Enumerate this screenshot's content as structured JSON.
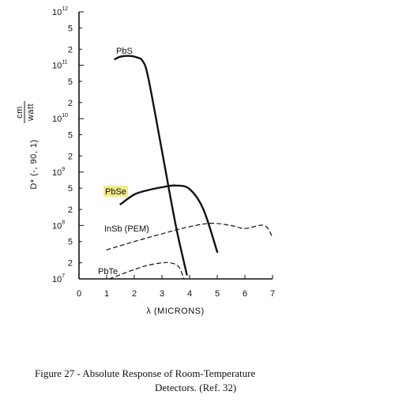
{
  "chart_data": {
    "type": "line",
    "title": "",
    "xlabel": "λ (MICRONS)",
    "ylabel": "D* (-, 90, 1)",
    "yunit": "cm/watt",
    "xlim": [
      0,
      7
    ],
    "ylim": [
      10000000.0,
      1000000000000.0
    ],
    "yscale": "log",
    "grid": false,
    "x_ticks": [
      "0",
      "1",
      "2",
      "3",
      "4",
      "5",
      "6",
      "7"
    ],
    "y_ticks": [
      {
        "value": 10000000.0,
        "mantissa": "10",
        "exp": "7"
      },
      {
        "value": 20000000.0,
        "mantissa": "2",
        "exp": ""
      },
      {
        "value": 50000000.0,
        "mantissa": "5",
        "exp": ""
      },
      {
        "value": 100000000.0,
        "mantissa": "10",
        "exp": "8"
      },
      {
        "value": 200000000.0,
        "mantissa": "2",
        "exp": ""
      },
      {
        "value": 500000000.0,
        "mantissa": "5",
        "exp": ""
      },
      {
        "value": 1000000000.0,
        "mantissa": "10",
        "exp": "9"
      },
      {
        "value": 2000000000.0,
        "mantissa": "2",
        "exp": ""
      },
      {
        "value": 5000000000.0,
        "mantissa": "5",
        "exp": ""
      },
      {
        "value": 10000000000.0,
        "mantissa": "10",
        "exp": "10"
      },
      {
        "value": 20000000000.0,
        "mantissa": "2",
        "exp": ""
      },
      {
        "value": 50000000000.0,
        "mantissa": "5",
        "exp": ""
      },
      {
        "value": 100000000000.0,
        "mantissa": "10",
        "exp": "11"
      },
      {
        "value": 200000000000.0,
        "mantissa": "2",
        "exp": ""
      },
      {
        "value": 500000000000.0,
        "mantissa": "5",
        "exp": ""
      },
      {
        "value": 1000000000000.0,
        "mantissa": "10",
        "exp": "12"
      }
    ],
    "series": [
      {
        "name": "PbS",
        "style": "solid",
        "color": "#111111",
        "x": [
          1.3,
          1.5,
          1.8,
          2.1,
          2.3,
          2.5,
          3.0,
          3.5,
          3.9
        ],
        "y": [
          130000000000.0,
          145000000000.0,
          150000000000.0,
          140000000000.0,
          120000000000.0,
          60000000000.0,
          2500000000.0,
          100000000.0,
          12000000.0
        ]
      },
      {
        "name": "PbSe",
        "style": "solid",
        "color": "#111111",
        "x": [
          1.5,
          2.0,
          2.5,
          3.0,
          3.5,
          4.0,
          4.5,
          5.0
        ],
        "y": [
          250000000.0,
          380000000.0,
          460000000.0,
          520000000.0,
          560000000.0,
          480000000.0,
          200000000.0,
          32000000.0
        ]
      },
      {
        "name": "InSb (PEM)",
        "style": "dashed",
        "color": "#111111",
        "x": [
          1.0,
          2.0,
          3.0,
          4.0,
          4.8,
          5.5,
          6.0,
          6.7,
          7.0
        ],
        "y": [
          35000000.0,
          50000000.0,
          70000000.0,
          95000000.0,
          110000000.0,
          100000000.0,
          88000000.0,
          100000000.0,
          60000000.0
        ]
      },
      {
        "name": "PbTe",
        "style": "dashed",
        "color": "#111111",
        "x": [
          1.1,
          1.5,
          2.0,
          2.5,
          3.0,
          3.3,
          3.6,
          3.8
        ],
        "y": [
          10000000.0,
          12000000.0,
          15000000.0,
          18000000.0,
          20000000.0,
          20000000.0,
          17000000.0,
          10000000.0
        ]
      }
    ],
    "highlight": {
      "series": "PbSe",
      "color": "#f1eb8a"
    }
  },
  "caption": {
    "line1": "Figure 27 - Absolute Response of Room-Temperature",
    "line2": "Detectors. (Ref. 32)"
  }
}
